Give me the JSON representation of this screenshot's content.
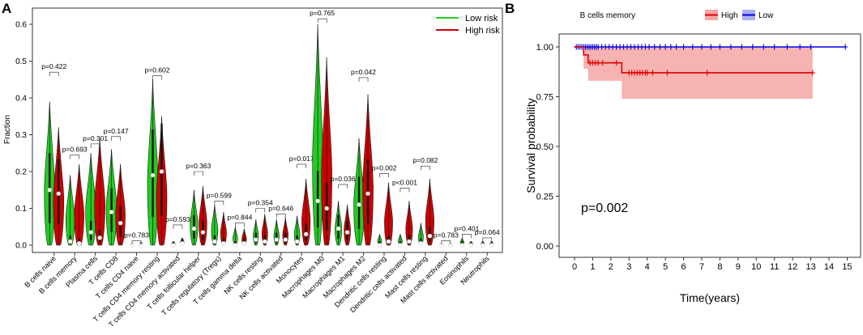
{
  "panel_a": {
    "label": "A",
    "ylabel": "Fraction",
    "y_ticks": [
      "0.0",
      "0.1",
      "0.2",
      "0.3",
      "0.4",
      "0.5",
      "0.6"
    ],
    "legend": {
      "low": "Low risk",
      "high": "High risk"
    }
  },
  "panel_b": {
    "label": "B",
    "legend_title": "B cells memory",
    "legend_high": "High",
    "legend_low": "Low",
    "ylabel": "Survival probability",
    "xlabel": "Time(years)",
    "y_ticks": [
      "0.00",
      "0.25",
      "0.50",
      "0.75",
      "1.00"
    ],
    "x_ticks": [
      "0",
      "1",
      "2",
      "3",
      "4",
      "5",
      "6",
      "7",
      "8",
      "9",
      "10",
      "11",
      "12",
      "13",
      "14",
      "15"
    ],
    "pvalue": "p=0.002"
  },
  "colors": {
    "low": "#22cc22",
    "high": "#cc0000",
    "km_high": "#e00000",
    "km_low": "#0000dd",
    "ci_high": "#f6a5a5"
  },
  "chart_data": [
    {
      "type": "violin",
      "title": "",
      "ylabel": "Fraction",
      "ylim": [
        0,
        0.65
      ],
      "series": [
        {
          "name": "Low risk",
          "color": "#22cc22",
          "max": [
            0.39,
            0.19,
            0.25,
            0.26,
            0.005,
            0.45,
            0.01,
            0.15,
            0.11,
            0.05,
            0.07,
            0.07,
            0.08,
            0.6,
            0.12,
            0.29,
            0.03,
            0.03,
            0.06,
            0.003,
            0.02,
            0.01
          ],
          "median": [
            0.15,
            0.01,
            0.035,
            0.09,
            0.0,
            0.19,
            0.0,
            0.045,
            0.01,
            0.0,
            0.015,
            0.015,
            0.01,
            0.12,
            0.045,
            0.11,
            0.0,
            0.0,
            0.005,
            0.0,
            0.0,
            0.0
          ]
        },
        {
          "name": "High risk",
          "color": "#cc0000",
          "max": [
            0.32,
            0.22,
            0.29,
            0.22,
            0.008,
            0.35,
            0.02,
            0.16,
            0.09,
            0.045,
            0.085,
            0.075,
            0.18,
            0.51,
            0.11,
            0.41,
            0.17,
            0.12,
            0.18,
            0.005,
            0.01,
            0.01
          ],
          "median": [
            0.14,
            0.005,
            0.02,
            0.06,
            0.0,
            0.2,
            0.005,
            0.035,
            0.005,
            0.005,
            0.01,
            0.015,
            0.03,
            0.1,
            0.035,
            0.14,
            0.01,
            0.01,
            0.025,
            0.0,
            0.0,
            0.0
          ]
        }
      ],
      "categories": [
        "B cells naive",
        "B cells memory",
        "Plasma cells",
        "T cells CD8",
        "T cells CD4 naive",
        "T cells CD4 memory resting",
        "T cells CD4 memory activated",
        "T cells follicular helper",
        "T cells regulatory (Tregs)",
        "T cells gamma delta",
        "NK cells resting",
        "NK cells activated",
        "Monocytes",
        "Macrophages M0",
        "Macrophages M1",
        "Macrophages M2",
        "Dendritic cells resting",
        "Dendritic cells activated",
        "Mast cells resting",
        "Mast cells activated",
        "Eosinophils",
        "Neutrophils"
      ],
      "pvalues": [
        "p=0.422",
        "p=0.693",
        "p=0.301",
        "p=0.147",
        "p=0.783",
        "p=0.602",
        "p=0.593",
        "p=0.363",
        "p=0.599",
        "p=0.844",
        "p=0.354",
        "p=0.646",
        "p=0.017",
        "p=0.765",
        "p=0.036",
        "p=0.042",
        "p=0.002",
        "p<0.001",
        "p=0.082",
        "p=0.783",
        "p=0.401",
        "p=0.064"
      ],
      "pvalue_y": [
        0.47,
        0.245,
        0.275,
        0.295,
        0.012,
        0.46,
        0.055,
        0.2,
        0.12,
        0.06,
        0.1,
        0.085,
        0.22,
        0.615,
        0.165,
        0.455,
        0.195,
        0.155,
        0.215,
        0.012,
        0.03,
        0.02
      ],
      "legend_position": "top-right"
    },
    {
      "type": "line",
      "title": "",
      "xlabel": "Time(years)",
      "ylabel": "Survival probability",
      "xlim": [
        -0.3,
        15.3
      ],
      "ylim": [
        0,
        1.05
      ],
      "legend_title": "B cells memory",
      "annotation": "p=0.002",
      "series": [
        {
          "name": "High",
          "color": "#e00000",
          "steps": [
            [
              0,
              1.0
            ],
            [
              0.5,
              1.0
            ],
            [
              0.5,
              0.96
            ],
            [
              0.75,
              0.96
            ],
            [
              0.75,
              0.92
            ],
            [
              2.6,
              0.92
            ],
            [
              2.6,
              0.87
            ],
            [
              13.1,
              0.87
            ]
          ],
          "ci": [
            [
              0,
              1.0,
              1.0
            ],
            [
              0.5,
              1.0,
              0.89
            ],
            [
              0.75,
              1.0,
              0.83
            ],
            [
              2.6,
              1.0,
              0.74
            ],
            [
              13.1,
              1.0,
              0.74
            ]
          ],
          "censor_x": [
            0.85,
            1.0,
            1.15,
            1.3,
            1.55,
            2.3,
            3.0,
            3.15,
            3.3,
            3.45,
            3.6,
            3.75,
            3.9,
            4.0,
            4.3,
            5.1,
            7.3,
            13.1
          ]
        },
        {
          "name": "Low",
          "color": "#0000dd",
          "steps": [
            [
              0,
              1.0
            ],
            [
              14.9,
              1.0
            ]
          ],
          "censor_x": [
            0.1,
            0.2,
            0.3,
            0.4,
            0.5,
            0.6,
            0.7,
            0.8,
            0.9,
            1.0,
            1.1,
            1.2,
            1.3,
            1.5,
            1.7,
            1.9,
            2.1,
            2.3,
            2.5,
            2.7,
            2.9,
            3.1,
            3.3,
            3.5,
            3.7,
            3.9,
            4.1,
            4.4,
            4.7,
            5.0,
            5.3,
            5.6,
            6.0,
            6.5,
            7.0,
            7.5,
            8.0,
            8.6,
            9.2,
            9.8,
            10.4,
            11.0,
            11.7,
            12.4,
            13.0,
            14.9
          ]
        }
      ]
    }
  ]
}
